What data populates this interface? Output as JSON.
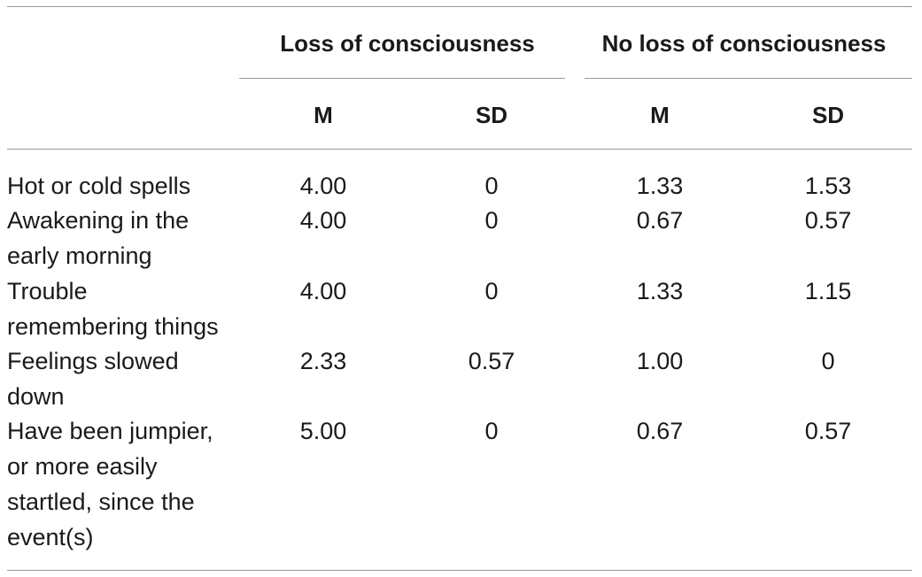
{
  "table": {
    "group_headers": [
      "Loss of consciousness",
      "No loss of consciousness"
    ],
    "sub_headers": [
      "M",
      "SD",
      "M",
      "SD"
    ],
    "rows": [
      {
        "label": "Hot or cold spells",
        "values": [
          "4.00",
          "0",
          "1.33",
          "1.53"
        ]
      },
      {
        "label": "Awakening in the early morning",
        "values": [
          "4.00",
          "0",
          "0.67",
          "0.57"
        ]
      },
      {
        "label": "Trouble remembering things",
        "values": [
          "4.00",
          "0",
          "1.33",
          "1.15"
        ]
      },
      {
        "label": "Feelings slowed down",
        "values": [
          "2.33",
          "0.57",
          "1.00",
          "0"
        ]
      },
      {
        "label": "Have been jumpier, or more easily startled, since the event(s)",
        "values": [
          "5.00",
          "0",
          "0.67",
          "0.57"
        ]
      }
    ]
  }
}
